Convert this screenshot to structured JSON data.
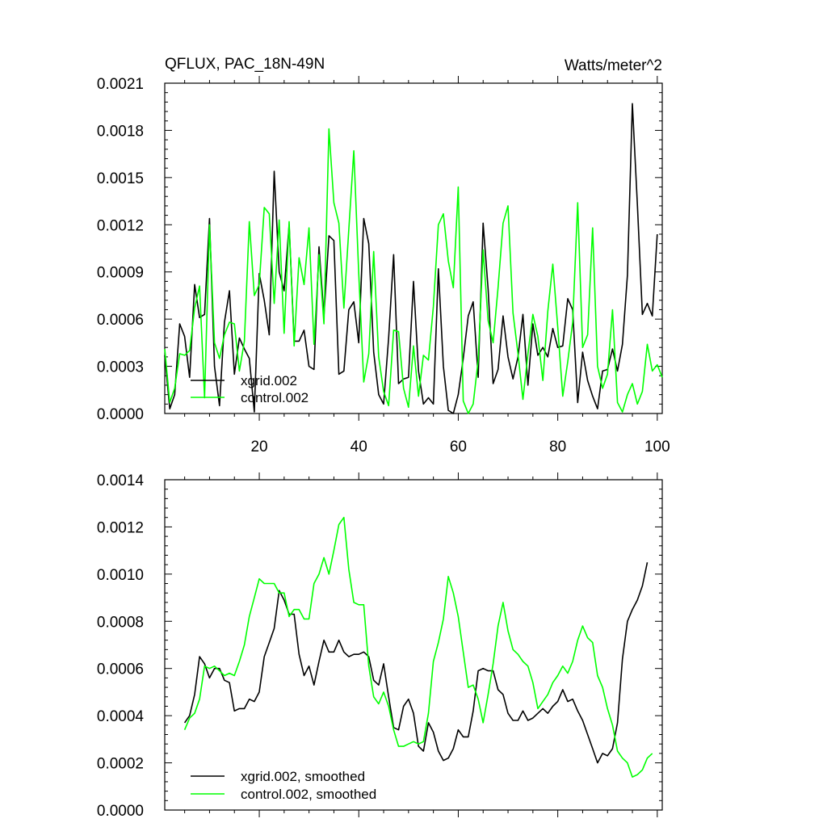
{
  "figure": {
    "title_left": "QFLUX, PAC_18N-49N",
    "title_right": "Watts/meter^2"
  },
  "chart_data": [
    {
      "type": "line",
      "title": "QFLUX, PAC_18N-49N",
      "units": "Watts/meter^2",
      "xlim": [
        1,
        101
      ],
      "ylim": [
        0,
        0.0021
      ],
      "xticks": [
        20,
        40,
        60,
        80,
        100
      ],
      "yticks": [
        0.0,
        0.0003,
        0.0006,
        0.0009,
        0.0012,
        0.0015,
        0.0018,
        0.0021
      ],
      "ytick_labels": [
        "0.0000",
        "0.0003",
        "0.0006",
        "0.0009",
        "0.0012",
        "0.0015",
        "0.0018",
        "0.0021"
      ],
      "legend_position": "bottom-left",
      "series": [
        {
          "name": "xgrid.002",
          "color": "#000000",
          "x_start": 1,
          "values": [
            0.00037,
            3e-05,
            0.00012,
            0.00057,
            0.00049,
            0.00023,
            0.00082,
            0.00061,
            0.00063,
            0.00124,
            0.0003,
            5e-05,
            0.00058,
            0.00078,
            0.00025,
            0.00048,
            0.00041,
            0.00035,
            1e-05,
            0.00089,
            0.00072,
            0.0005,
            0.00154,
            0.0009,
            0.00078,
            0.0012,
            0.00046,
            0.00046,
            0.00053,
            0.0003,
            0.00028,
            0.00106,
            0.00062,
            0.00113,
            0.0011,
            0.00025,
            0.00027,
            0.00066,
            0.00071,
            0.00045,
            0.00124,
            0.00108,
            0.00039,
            0.00012,
            6e-05,
            0.00048,
            0.00101,
            0.00019,
            0.00022,
            0.00023,
            0.00084,
            0.00027,
            6e-05,
            0.0001,
            6e-05,
            0.00092,
            0.0003,
            2e-05,
            0.0,
            0.00012,
            0.00035,
            0.00062,
            0.00071,
            0.00023,
            0.00121,
            0.00079,
            0.00019,
            0.00028,
            0.00062,
            0.00036,
            0.00022,
            0.00036,
            0.00063,
            0.00018,
            0.00057,
            0.00037,
            0.00042,
            0.00036,
            0.00054,
            0.00042,
            0.00043,
            0.00073,
            0.00066,
            7e-05,
            0.00039,
            0.00021,
            0.00011,
            3e-05,
            0.00027,
            0.00028,
            0.00041,
            0.00027,
            0.00044,
            0.00088,
            0.00197,
            0.00133,
            0.00063,
            0.0007,
            0.00062,
            0.00114
          ]
        },
        {
          "name": "control.002",
          "color": "#00ff00",
          "x_start": 1,
          "values": [
            0.00041,
            7e-05,
            0.00016,
            0.00038,
            0.00037,
            0.0004,
            0.00067,
            0.00081,
            0.0001,
            0.0012,
            0.00045,
            0.00035,
            0.0005,
            0.00058,
            0.00057,
            0.00027,
            0.00046,
            0.00122,
            0.00075,
            0.00082,
            0.00131,
            0.00127,
            0.0007,
            0.00123,
            0.00051,
            0.00122,
            0.00043,
            0.00099,
            0.00082,
            0.00118,
            0.00044,
            0.00101,
            0.00057,
            0.00181,
            0.00134,
            0.00121,
            0.00067,
            0.00117,
            0.00167,
            0.00089,
            0.0002,
            0.00038,
            0.00103,
            0.00036,
            0.00014,
            5e-05,
            0.00053,
            0.00052,
            0.00016,
            4e-05,
            0.00043,
            0.00011,
            0.00037,
            0.00034,
            0.00068,
            0.0012,
            0.00127,
            0.00097,
            0.0008,
            0.00144,
            8e-05,
            0.0,
            6e-05,
            0.00034,
            0.00104,
            0.00059,
            0.00045,
            0.0008,
            0.00121,
            0.00132,
            0.00064,
            0.00038,
            9e-05,
            0.00038,
            0.00063,
            0.00049,
            0.00021,
            0.00065,
            0.00095,
            0.00055,
            0.00011,
            0.00033,
            0.00058,
            0.00134,
            0.00042,
            0.0005,
            0.00118,
            0.0003,
            0.00016,
            0.00025,
            0.00066,
            7e-05,
            1e-05,
            0.00012,
            0.00019,
            6e-05,
            0.00014,
            0.00044,
            0.00027,
            0.00031,
            0.00023
          ]
        }
      ]
    },
    {
      "type": "line",
      "title": "",
      "xlim": [
        1,
        101
      ],
      "ylim": [
        0,
        0.0014
      ],
      "xticks": [
        20,
        40,
        60,
        80,
        100
      ],
      "yticks": [
        0.0,
        0.0002,
        0.0004,
        0.0006,
        0.0008,
        0.001,
        0.0012,
        0.0014
      ],
      "ytick_labels": [
        "0.0000",
        "0.0002",
        "0.0004",
        "0.0006",
        "0.0008",
        "0.0010",
        "0.0012",
        "0.0014"
      ],
      "legend_position": "bottom-left",
      "series": [
        {
          "name": "xgrid.002, smoothed",
          "color": "#000000",
          "x_start": 5,
          "values": [
            0.00037,
            0.0004,
            0.00049,
            0.00065,
            0.00062,
            0.00056,
            0.0006,
            0.0006,
            0.00055,
            0.00054,
            0.00042,
            0.00043,
            0.00043,
            0.00047,
            0.00046,
            0.0005,
            0.00065,
            0.00071,
            0.00077,
            0.00093,
            0.00089,
            0.00083,
            0.00083,
            0.00066,
            0.00057,
            0.00061,
            0.00053,
            0.00063,
            0.00072,
            0.00067,
            0.00067,
            0.00072,
            0.00067,
            0.00065,
            0.00066,
            0.00066,
            0.00067,
            0.00065,
            0.00055,
            0.00053,
            0.00062,
            0.00048,
            0.00035,
            0.00034,
            0.00044,
            0.00047,
            0.00041,
            0.00027,
            0.00025,
            0.00037,
            0.00033,
            0.00025,
            0.00021,
            0.00022,
            0.00026,
            0.00034,
            0.00031,
            0.00031,
            0.00042,
            0.00059,
            0.0006,
            0.00059,
            0.00059,
            0.00051,
            0.00049,
            0.00041,
            0.00038,
            0.00038,
            0.00042,
            0.00038,
            0.00039,
            0.00041,
            0.00043,
            0.00041,
            0.00044,
            0.00046,
            0.00051,
            0.00046,
            0.00047,
            0.00042,
            0.00038,
            0.00032,
            0.00026,
            0.0002,
            0.00024,
            0.00023,
            0.00026,
            0.00037,
            0.00064,
            0.0008,
            0.00085,
            0.00089,
            0.00095,
            0.00105
          ]
        },
        {
          "name": "control.002, smoothed",
          "color": "#00ff00",
          "x_start": 5,
          "values": [
            0.00034,
            0.00039,
            0.00041,
            0.00047,
            0.00061,
            0.0006,
            0.00061,
            0.00059,
            0.00057,
            0.00058,
            0.00057,
            0.00063,
            0.0007,
            0.00082,
            0.0009,
            0.00098,
            0.00096,
            0.00096,
            0.00096,
            0.00092,
            0.00092,
            0.00082,
            0.00085,
            0.00085,
            0.00081,
            0.00081,
            0.00096,
            0.001,
            0.00107,
            0.001,
            0.0011,
            0.00121,
            0.00124,
            0.00102,
            0.00088,
            0.00087,
            0.00087,
            0.00061,
            0.00048,
            0.00045,
            0.0005,
            0.00044,
            0.00034,
            0.00027,
            0.00027,
            0.00028,
            0.00029,
            0.00028,
            0.00029,
            0.00041,
            0.00063,
            0.00071,
            0.00081,
            0.00099,
            0.00092,
            0.00082,
            0.00067,
            0.00052,
            0.00053,
            0.00047,
            0.00037,
            0.00049,
            0.00062,
            0.00078,
            0.00088,
            0.00076,
            0.00068,
            0.00066,
            0.00063,
            0.00061,
            0.00054,
            0.00043,
            0.00046,
            0.00049,
            0.00054,
            0.00057,
            0.00061,
            0.00058,
            0.00063,
            0.00072,
            0.00078,
            0.00073,
            0.00071,
            0.00057,
            0.00052,
            0.00043,
            0.00036,
            0.00025,
            0.00022,
            0.0002,
            0.00014,
            0.00015,
            0.00017,
            0.00022,
            0.00024
          ]
        }
      ]
    }
  ]
}
